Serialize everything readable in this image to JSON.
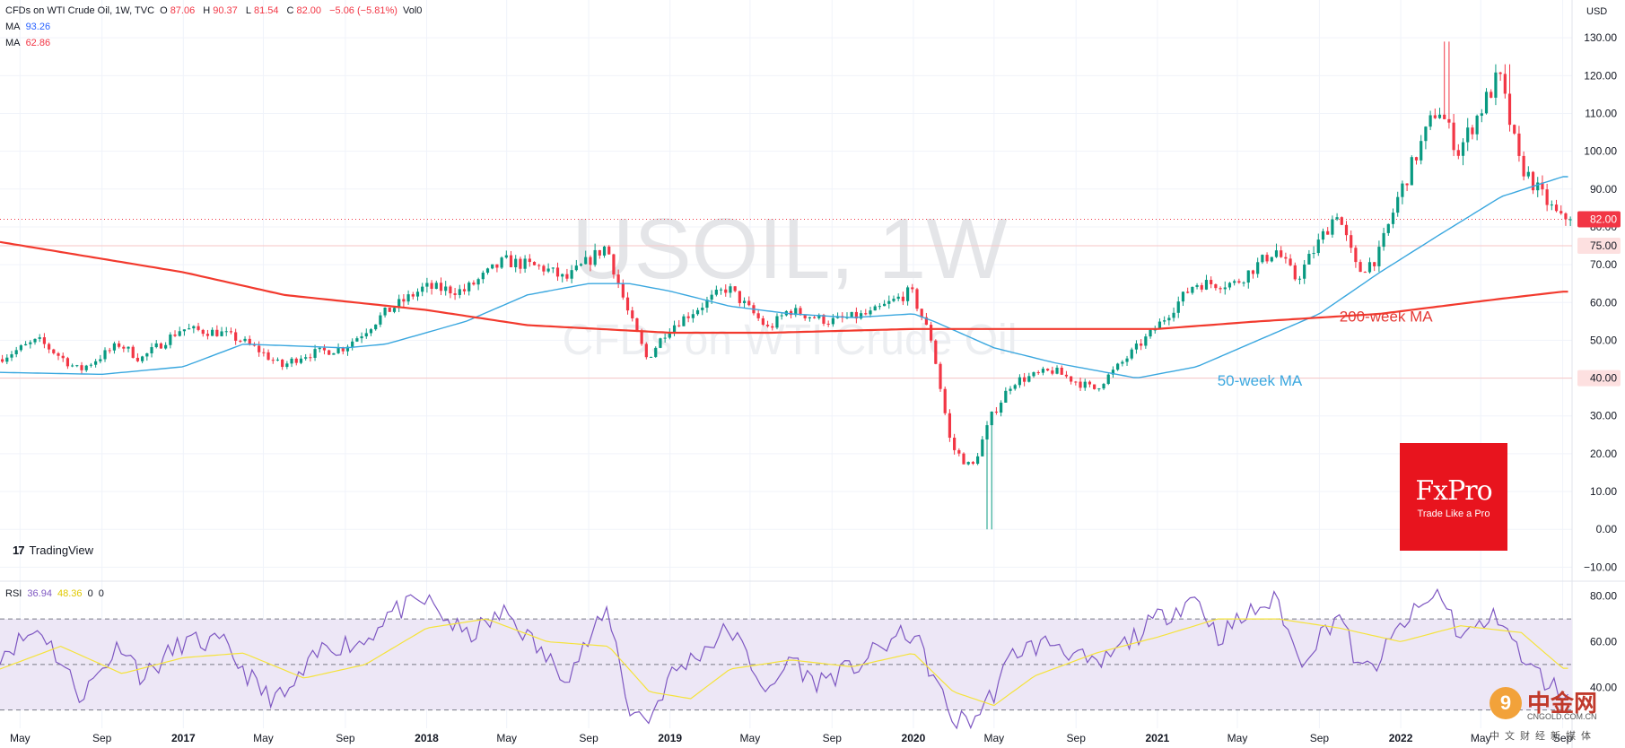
{
  "header": {
    "symbol": "CFDs on WTI Crude Oil, 1W, TVC",
    "open_label": "O",
    "open": "87.06",
    "high_label": "H",
    "high": "90.37",
    "low_label": "L",
    "low": "81.54",
    "close_label": "C",
    "close": "82.00",
    "change": "−5.06 (−5.81%)",
    "vol": "Vol0"
  },
  "indicators": {
    "ma50_label": "MA",
    "ma50_value": "93.26",
    "ma200_label": "MA",
    "ma200_value": "62.86",
    "rsi_label": "RSI",
    "rsi_value": "36.94",
    "rsi_ma_value": "48.36",
    "rsi_extra1": "0",
    "rsi_extra2": "0"
  },
  "watermark": {
    "line1": "USOIL, 1W",
    "line2": "CFDs on WTI Crude Oil"
  },
  "branding": {
    "tradingview": "TradingView",
    "fxpro_name": "FxPro",
    "fxpro_tagline": "Trade Like a Pro",
    "cn_name": "中金网",
    "cn_url": "CNGOLD.COM.CN",
    "cn_sub": "中文财经新媒体"
  },
  "colors": {
    "up": "#089981",
    "down": "#f23645",
    "ma50": "#2962ff",
    "ma50_line": "#3aa7df",
    "ma200": "#f23a2e",
    "rsi": "#7e57c2",
    "rsi_ma": "#f5e33b",
    "rsi_band": "#ede7f6",
    "grid": "#f0f3fa"
  },
  "chart_data": [
    {
      "type": "candlestick",
      "title": "USOIL, 1W",
      "subtitle": "CFDs on WTI Crude Oil",
      "currency": "USD",
      "ylim": [
        -13,
        140
      ],
      "y_ticks": [
        -10,
        0,
        10,
        20,
        30,
        40,
        50,
        60,
        70,
        80,
        90,
        100,
        110,
        120,
        130
      ],
      "y_tick_labels": [
        "−10.00",
        "0.00",
        "10.00",
        "20.00",
        "30.00",
        "40.00",
        "50.00",
        "60.00",
        "70.00",
        "80.00",
        "90.00",
        "100.00",
        "110.00",
        "120.00",
        "130.00"
      ],
      "x_ticks": [
        "May",
        "Sep",
        "2017",
        "May",
        "Sep",
        "2018",
        "May",
        "Sep",
        "2019",
        "May",
        "Sep",
        "2020",
        "May",
        "Sep",
        "2021",
        "May",
        "Sep",
        "2022",
        "May",
        "Sep"
      ],
      "x_tick_dates": [
        "2016-05",
        "2016-09",
        "2017-01",
        "2017-05",
        "2017-09",
        "2018-01",
        "2018-05",
        "2018-09",
        "2019-01",
        "2019-05",
        "2019-09",
        "2020-01",
        "2020-05",
        "2020-09",
        "2021-01",
        "2021-05",
        "2021-09",
        "2022-01",
        "2022-05",
        "2022-09"
      ],
      "x_range": [
        "2016-04",
        "2022-09"
      ],
      "price_path": [
        [
          "2016-04",
          45
        ],
        [
          "2016-06",
          50
        ],
        [
          "2016-08",
          42
        ],
        [
          "2016-10",
          49
        ],
        [
          "2016-11",
          45
        ],
        [
          "2017-01",
          53
        ],
        [
          "2017-03",
          52
        ],
        [
          "2017-04",
          50
        ],
        [
          "2017-05",
          47
        ],
        [
          "2017-06",
          43
        ],
        [
          "2017-07",
          46
        ],
        [
          "2017-09",
          48
        ],
        [
          "2017-10",
          52
        ],
        [
          "2017-11",
          57
        ],
        [
          "2018-01",
          64
        ],
        [
          "2018-03",
          63
        ],
        [
          "2018-05",
          71
        ],
        [
          "2018-07",
          69
        ],
        [
          "2018-08",
          66
        ],
        [
          "2018-10",
          75
        ],
        [
          "2018-11",
          58
        ],
        [
          "2018-12",
          45
        ],
        [
          "2019-01",
          53
        ],
        [
          "2019-04",
          64
        ],
        [
          "2019-06",
          53
        ],
        [
          "2019-07",
          58
        ],
        [
          "2019-09",
          55
        ],
        [
          "2019-11",
          57
        ],
        [
          "2020-01",
          63
        ],
        [
          "2020-02",
          50
        ],
        [
          "2020-03",
          22
        ],
        [
          "2020-04",
          16
        ],
        [
          "2020-05",
          30
        ],
        [
          "2020-06",
          39
        ],
        [
          "2020-08",
          42
        ],
        [
          "2020-10",
          37
        ],
        [
          "2020-11",
          42
        ],
        [
          "2021-01",
          53
        ],
        [
          "2021-03",
          65
        ],
        [
          "2021-05",
          65
        ],
        [
          "2021-07",
          74
        ],
        [
          "2021-08",
          66
        ],
        [
          "2021-10",
          84
        ],
        [
          "2021-11",
          68
        ],
        [
          "2021-12",
          72
        ],
        [
          "2022-01",
          88
        ],
        [
          "2022-03",
          112
        ],
        [
          "2022-04",
          100
        ],
        [
          "2022-06",
          120
        ],
        [
          "2022-07",
          97
        ],
        [
          "2022-08",
          89
        ],
        [
          "2022-09",
          82
        ]
      ],
      "annotations": [
        {
          "text": "200-week MA",
          "date": "2021-10",
          "value": 55
        },
        {
          "text": "50-week MA",
          "date": "2021-04",
          "value": 38
        }
      ],
      "price_labels": [
        {
          "text": "82.00",
          "value": 82,
          "color": "#f23645"
        },
        {
          "text": "75.00",
          "value": 75,
          "color": "#fde0e0"
        },
        {
          "text": "40.00",
          "value": 40,
          "color": "#fde0e0"
        }
      ],
      "ma50": [
        [
          "2016-04",
          41.5
        ],
        [
          "2016-09",
          41
        ],
        [
          "2017-01",
          43
        ],
        [
          "2017-04",
          49
        ],
        [
          "2017-09",
          48
        ],
        [
          "2017-11",
          49
        ],
        [
          "2018-03",
          55
        ],
        [
          "2018-06",
          62
        ],
        [
          "2018-09",
          65
        ],
        [
          "2018-11",
          65
        ],
        [
          "2019-01",
          63
        ],
        [
          "2019-04",
          59
        ],
        [
          "2019-07",
          57
        ],
        [
          "2019-10",
          56
        ],
        [
          "2020-01",
          57
        ],
        [
          "2020-02",
          55
        ],
        [
          "2020-05",
          48
        ],
        [
          "2020-08",
          44
        ],
        [
          "2020-11",
          41
        ],
        [
          "2020-12",
          40
        ],
        [
          "2021-03",
          43
        ],
        [
          "2021-06",
          50
        ],
        [
          "2021-09",
          57
        ],
        [
          "2021-12",
          68
        ],
        [
          "2022-03",
          78
        ],
        [
          "2022-06",
          88
        ],
        [
          "2022-09",
          93.26
        ]
      ],
      "ma200": [
        [
          "2016-04",
          76
        ],
        [
          "2017-01",
          68
        ],
        [
          "2017-06",
          62
        ],
        [
          "2018-01",
          58
        ],
        [
          "2018-06",
          54
        ],
        [
          "2019-01",
          52
        ],
        [
          "2019-06",
          52
        ],
        [
          "2020-01",
          53
        ],
        [
          "2020-06",
          53
        ],
        [
          "2021-01",
          53
        ],
        [
          "2021-06",
          55
        ],
        [
          "2021-12",
          57
        ],
        [
          "2022-06",
          61
        ],
        [
          "2022-09",
          62.86
        ]
      ]
    },
    {
      "type": "line",
      "title": "RSI",
      "ylim": [
        22,
        85
      ],
      "y_ticks": [
        40,
        60,
        80
      ],
      "y_tick_labels": [
        "40.00",
        "60.00",
        "80.00"
      ],
      "bands": [
        30,
        50,
        70
      ],
      "rsi": [
        [
          "2016-04",
          55
        ],
        [
          "2016-06",
          66
        ],
        [
          "2016-08",
          36
        ],
        [
          "2016-10",
          60
        ],
        [
          "2016-11",
          44
        ],
        [
          "2017-01",
          60
        ],
        [
          "2017-03",
          59
        ],
        [
          "2017-05",
          37
        ],
        [
          "2017-06",
          35
        ],
        [
          "2017-08",
          58
        ],
        [
          "2017-10",
          60
        ],
        [
          "2017-11",
          72
        ],
        [
          "2018-01",
          78
        ],
        [
          "2018-03",
          62
        ],
        [
          "2018-05",
          73
        ],
        [
          "2018-07",
          52
        ],
        [
          "2018-08",
          46
        ],
        [
          "2018-10",
          74
        ],
        [
          "2018-11",
          30
        ],
        [
          "2018-12",
          26
        ],
        [
          "2019-01",
          45
        ],
        [
          "2019-04",
          66
        ],
        [
          "2019-06",
          36
        ],
        [
          "2019-07",
          55
        ],
        [
          "2019-08",
          42
        ],
        [
          "2019-10",
          48
        ],
        [
          "2019-12",
          61
        ],
        [
          "2020-01",
          64
        ],
        [
          "2020-02",
          44
        ],
        [
          "2020-03",
          25
        ],
        [
          "2020-04",
          26
        ],
        [
          "2020-05",
          38
        ],
        [
          "2020-06",
          56
        ],
        [
          "2020-08",
          60
        ],
        [
          "2020-10",
          48
        ],
        [
          "2020-11",
          56
        ],
        [
          "2021-01",
          70
        ],
        [
          "2021-03",
          80
        ],
        [
          "2021-04",
          62
        ],
        [
          "2021-06",
          75
        ],
        [
          "2021-07",
          78
        ],
        [
          "2021-08",
          51
        ],
        [
          "2021-10",
          73
        ],
        [
          "2021-11",
          46
        ],
        [
          "2021-12",
          52
        ],
        [
          "2022-01",
          67
        ],
        [
          "2022-03",
          82
        ],
        [
          "2022-04",
          62
        ],
        [
          "2022-06",
          72
        ],
        [
          "2022-07",
          52
        ],
        [
          "2022-08",
          44
        ],
        [
          "2022-09",
          36.94
        ]
      ],
      "rsi_ma": [
        [
          "2016-04",
          48
        ],
        [
          "2016-07",
          58
        ],
        [
          "2016-10",
          46
        ],
        [
          "2017-01",
          53
        ],
        [
          "2017-04",
          55
        ],
        [
          "2017-07",
          44
        ],
        [
          "2017-10",
          50
        ],
        [
          "2018-01",
          66
        ],
        [
          "2018-04",
          70
        ],
        [
          "2018-07",
          60
        ],
        [
          "2018-10",
          58
        ],
        [
          "2018-12",
          38
        ],
        [
          "2019-02",
          35
        ],
        [
          "2019-04",
          48
        ],
        [
          "2019-07",
          52
        ],
        [
          "2019-10",
          49
        ],
        [
          "2020-01",
          55
        ],
        [
          "2020-03",
          38
        ],
        [
          "2020-05",
          32
        ],
        [
          "2020-07",
          45
        ],
        [
          "2020-10",
          55
        ],
        [
          "2021-01",
          62
        ],
        [
          "2021-04",
          70
        ],
        [
          "2021-07",
          70
        ],
        [
          "2021-10",
          66
        ],
        [
          "2022-01",
          60
        ],
        [
          "2022-04",
          67
        ],
        [
          "2022-07",
          64
        ],
        [
          "2022-09",
          48.36
        ]
      ]
    }
  ]
}
